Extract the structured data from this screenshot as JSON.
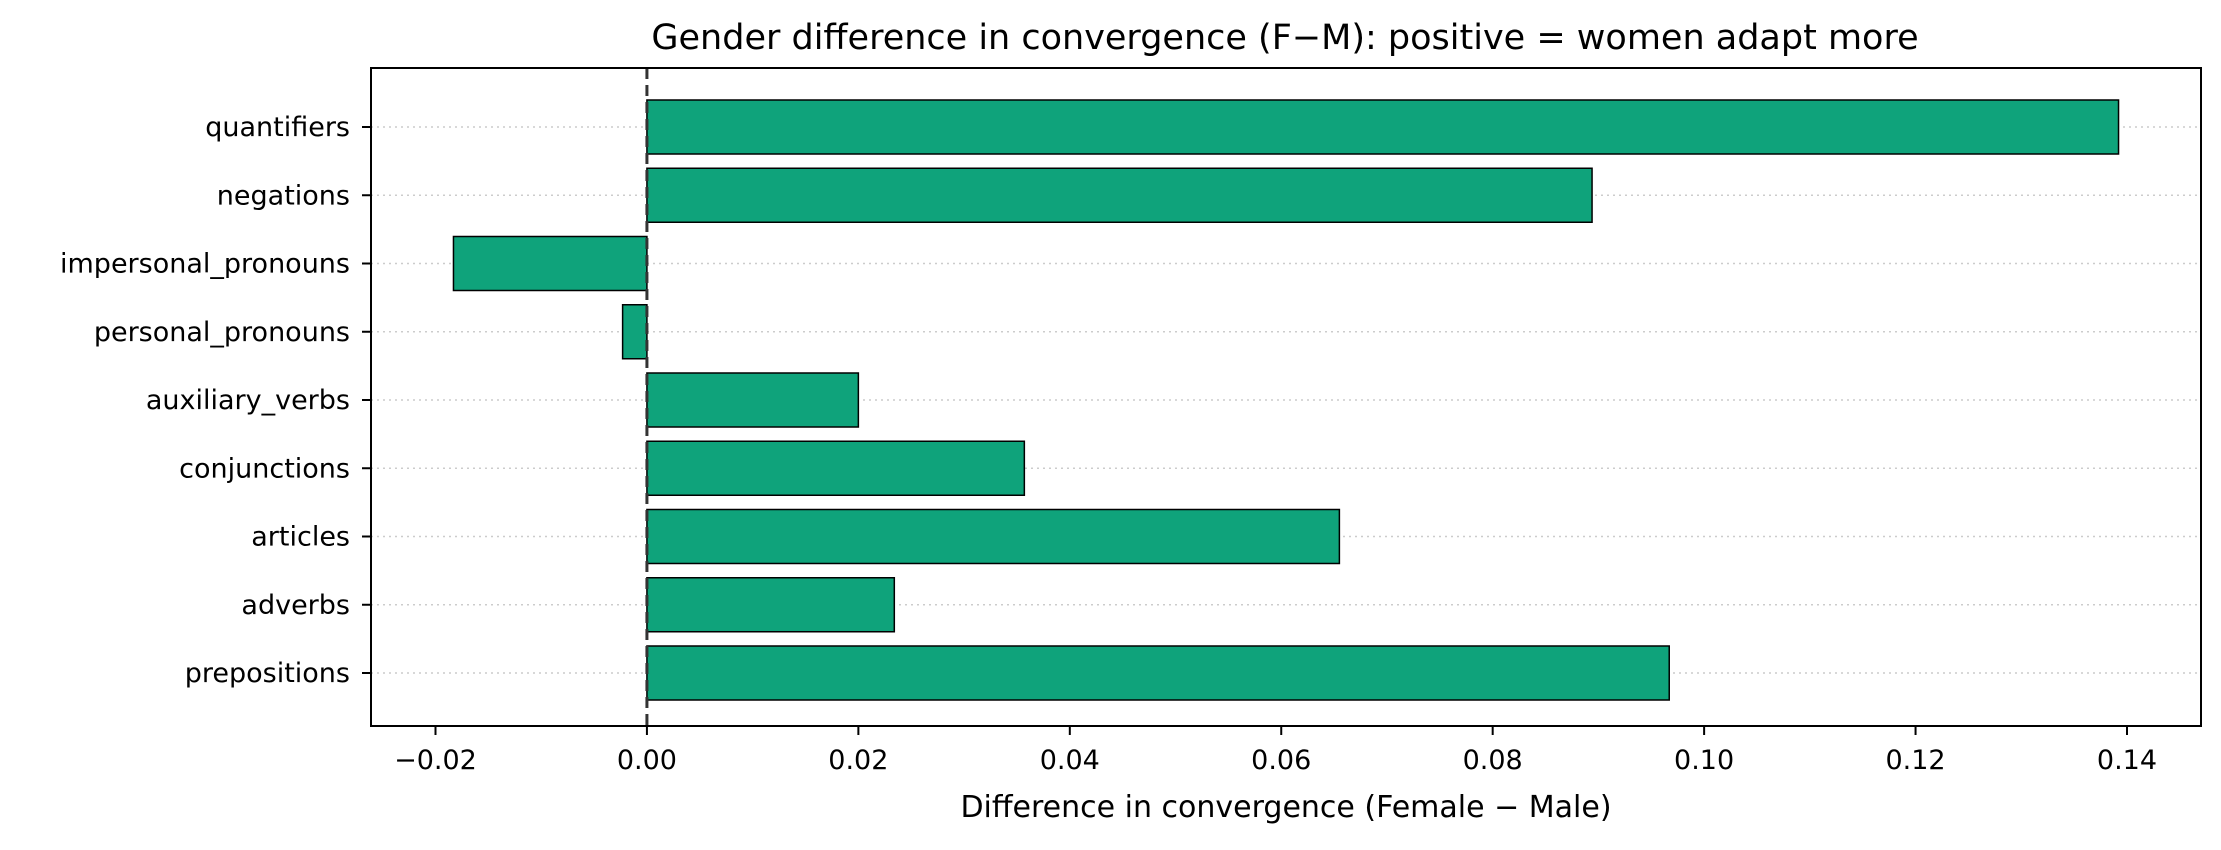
{
  "chart_data": {
    "type": "bar",
    "orientation": "horizontal",
    "title": "Gender difference in convergence (F−M): positive = women adapt more",
    "xlabel": "Difference in convergence (Female − Male)",
    "ylabel": "",
    "categories": [
      "quantifiers",
      "negations",
      "impersonal_pronouns",
      "personal_pronouns",
      "auxiliary_verbs",
      "conjunctions",
      "articles",
      "adverbs",
      "prepositions"
    ],
    "values": [
      0.1392,
      0.0894,
      -0.0183,
      -0.0023,
      0.02,
      0.0357,
      0.0655,
      0.0234,
      0.0967
    ],
    "xlim": [
      -0.0261,
      0.147
    ],
    "xticks": [
      -0.02,
      0.0,
      0.02,
      0.04,
      0.06,
      0.08,
      0.1,
      0.12,
      0.14
    ],
    "xtick_labels": [
      "−0.02",
      "0.00",
      "0.02",
      "0.04",
      "0.06",
      "0.08",
      "0.10",
      "0.12",
      "0.14"
    ],
    "reference_line": {
      "x": 0,
      "style": "dashed"
    },
    "grid": {
      "x": false,
      "y": true,
      "style": "dotted"
    },
    "legend": "none",
    "colors": {
      "bar_fill": "#0fa37b",
      "bar_edge": "#000000",
      "grid": "#cccccc",
      "reference_line": "#333333",
      "axes": "#000000"
    }
  }
}
